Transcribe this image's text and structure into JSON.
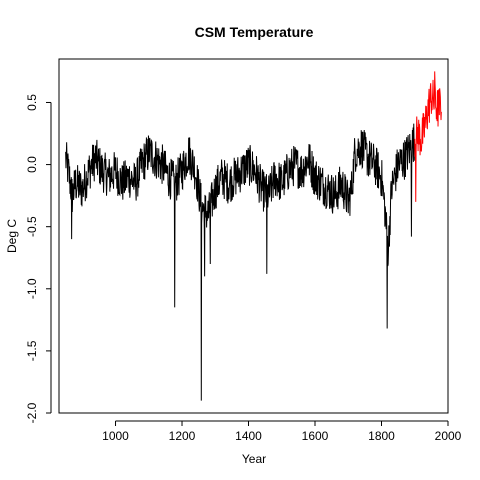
{
  "chart_data": {
    "type": "line",
    "title": "CSM Temperature",
    "xlabel": "Year",
    "ylabel": "Deg C",
    "xlim": [
      830,
      2000
    ],
    "ylim": [
      -2.0,
      0.85
    ],
    "x_ticks": [
      1000,
      1200,
      1400,
      1600,
      1800,
      2000
    ],
    "y_ticks": [
      0.5,
      0.0,
      -0.5,
      -1.0,
      -1.5,
      -2.0
    ],
    "y_tick_labels": [
      "0.5",
      "0.0",
      "-0.5",
      "-1.0",
      "-1.5",
      "-2.0"
    ],
    "grid": false,
    "series": [
      {
        "color": "#000000",
        "x_range": [
          850,
          1900
        ],
        "keypoints": [
          [
            850,
            0.05
          ],
          [
            860,
            -0.08
          ],
          [
            870,
            -0.25
          ],
          [
            880,
            -0.15
          ],
          [
            900,
            -0.2
          ],
          [
            920,
            -0.05
          ],
          [
            940,
            0.05
          ],
          [
            960,
            -0.05
          ],
          [
            980,
            -0.1
          ],
          [
            1000,
            -0.05
          ],
          [
            1020,
            -0.15
          ],
          [
            1040,
            -0.1
          ],
          [
            1060,
            -0.15
          ],
          [
            1080,
            0.0
          ],
          [
            1100,
            0.1
          ],
          [
            1120,
            0.05
          ],
          [
            1140,
            0.0
          ],
          [
            1160,
            -0.1
          ],
          [
            1180,
            -0.15
          ],
          [
            1200,
            -0.05
          ],
          [
            1220,
            0.1
          ],
          [
            1240,
            -0.05
          ],
          [
            1260,
            -0.35
          ],
          [
            1280,
            -0.4
          ],
          [
            1300,
            -0.2
          ],
          [
            1320,
            -0.1
          ],
          [
            1340,
            -0.15
          ],
          [
            1360,
            -0.1
          ],
          [
            1380,
            -0.05
          ],
          [
            1400,
            0.0
          ],
          [
            1420,
            -0.05
          ],
          [
            1440,
            -0.2
          ],
          [
            1460,
            -0.25
          ],
          [
            1480,
            -0.1
          ],
          [
            1500,
            -0.15
          ],
          [
            1520,
            -0.05
          ],
          [
            1540,
            0.0
          ],
          [
            1560,
            -0.05
          ],
          [
            1580,
            0.05
          ],
          [
            1600,
            -0.1
          ],
          [
            1620,
            -0.15
          ],
          [
            1640,
            -0.2
          ],
          [
            1660,
            -0.25
          ],
          [
            1680,
            -0.15
          ],
          [
            1700,
            -0.3
          ],
          [
            1710,
            -0.2
          ],
          [
            1720,
            0.1
          ],
          [
            1740,
            0.15
          ],
          [
            1760,
            0.05
          ],
          [
            1780,
            0.0
          ],
          [
            1800,
            -0.1
          ],
          [
            1810,
            -0.35
          ],
          [
            1820,
            -0.7
          ],
          [
            1830,
            -0.2
          ],
          [
            1850,
            0.0
          ],
          [
            1870,
            0.05
          ],
          [
            1890,
            0.15
          ],
          [
            1900,
            0.2
          ]
        ],
        "spikes": [
          [
            868,
            -0.6
          ],
          [
            1178,
            -1.15
          ],
          [
            1258,
            -1.9
          ],
          [
            1268,
            -0.9
          ],
          [
            1285,
            -0.8
          ],
          [
            1455,
            -0.88
          ],
          [
            1817,
            -1.32
          ],
          [
            1890,
            -0.58
          ]
        ]
      },
      {
        "color": "#ff0000",
        "x_range": [
          1900,
          1980
        ],
        "keypoints": [
          [
            1900,
            0.2
          ],
          [
            1910,
            0.25
          ],
          [
            1920,
            0.2
          ],
          [
            1930,
            0.3
          ],
          [
            1940,
            0.45
          ],
          [
            1950,
            0.55
          ],
          [
            1960,
            0.5
          ],
          [
            1970,
            0.45
          ],
          [
            1980,
            0.5
          ]
        ],
        "spikes": [
          [
            1903,
            -0.3
          ],
          [
            1960,
            0.75
          ]
        ]
      }
    ]
  }
}
